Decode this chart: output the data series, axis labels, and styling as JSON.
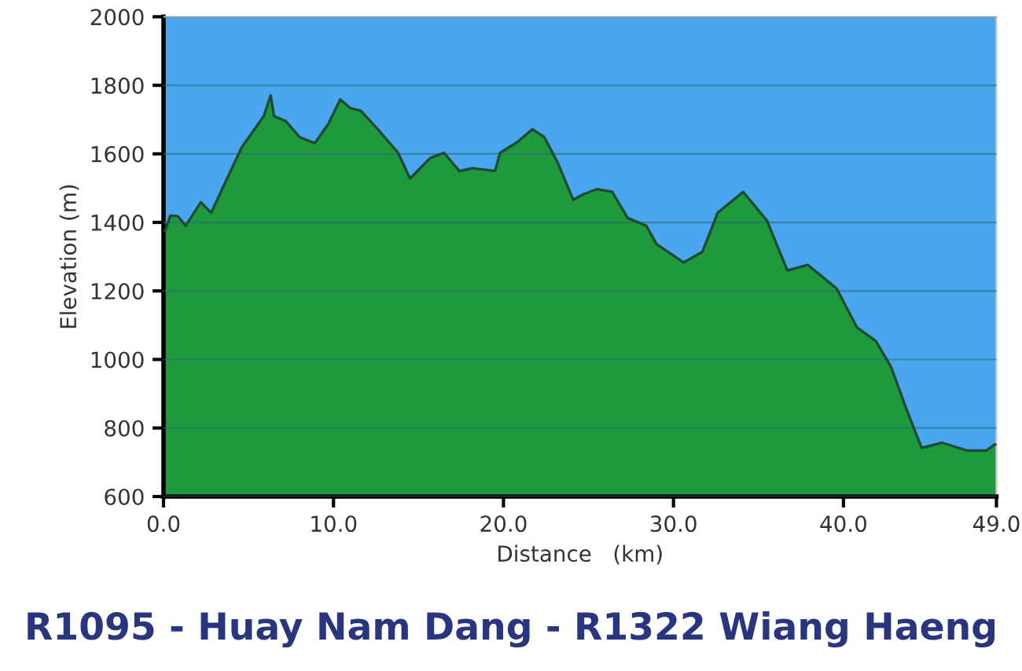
{
  "chart_data": {
    "type": "area",
    "title": "R1095 - Huay Nam Dang - R1322 Wiang Haeng",
    "xlabel": "Distance   (km)",
    "ylabel": "Elevation (m)",
    "series": [
      {
        "color": "#1e9a3c",
        "x": [
          0,
          0.1,
          0.4,
          0.85,
          1.3,
          2.2,
          2.8,
          4.6,
          5.9,
          6.3,
          6.5,
          7.2,
          8.0,
          8.9,
          9.7,
          10.4,
          11.0,
          11.6,
          12.6,
          13.8,
          14.5,
          15.7,
          16.5,
          17.4,
          18.2,
          19.5,
          19.8,
          20.8,
          21.7,
          22.4,
          23.2,
          24.1,
          24.7,
          25.5,
          26.4,
          27.3,
          28.4,
          29.0,
          30.6,
          31.7,
          32.6,
          34.1,
          35.5,
          36.7,
          37.9,
          39.6,
          40.8,
          41.9,
          42.8,
          43.7,
          44.6,
          45.8,
          47.3,
          48.4,
          48.9,
          49.0
        ],
        "values": [
          1375,
          1375,
          1420,
          1418,
          1390,
          1459,
          1428,
          1619,
          1710,
          1771,
          1710,
          1695,
          1649,
          1631,
          1688,
          1759,
          1733,
          1726,
          1672,
          1603,
          1528,
          1588,
          1603,
          1550,
          1558,
          1550,
          1603,
          1634,
          1672,
          1649,
          1573,
          1466,
          1482,
          1497,
          1489,
          1413,
          1390,
          1337,
          1283,
          1314,
          1428,
          1489,
          1405,
          1260,
          1276,
          1207,
          1093,
          1054,
          978,
          856,
          742,
          757,
          734,
          734,
          752,
          752
        ]
      }
    ],
    "xlim": [
      0,
      49
    ],
    "ylim": [
      600,
      2000
    ],
    "xticks": [
      {
        "value": 0,
        "label": "0.0"
      },
      {
        "value": 10,
        "label": "10.0"
      },
      {
        "value": 20,
        "label": "20.0"
      },
      {
        "value": 30,
        "label": "30.0"
      },
      {
        "value": 40,
        "label": "40.0"
      },
      {
        "value": 49,
        "label": "49.0"
      }
    ],
    "yticks": [
      600,
      800,
      1000,
      1200,
      1400,
      1600,
      1800,
      2000
    ],
    "bands": [
      {
        "axis": "y",
        "from": 600,
        "to": 2000,
        "color": "#4aa6ee"
      }
    ],
    "grid": "y"
  }
}
